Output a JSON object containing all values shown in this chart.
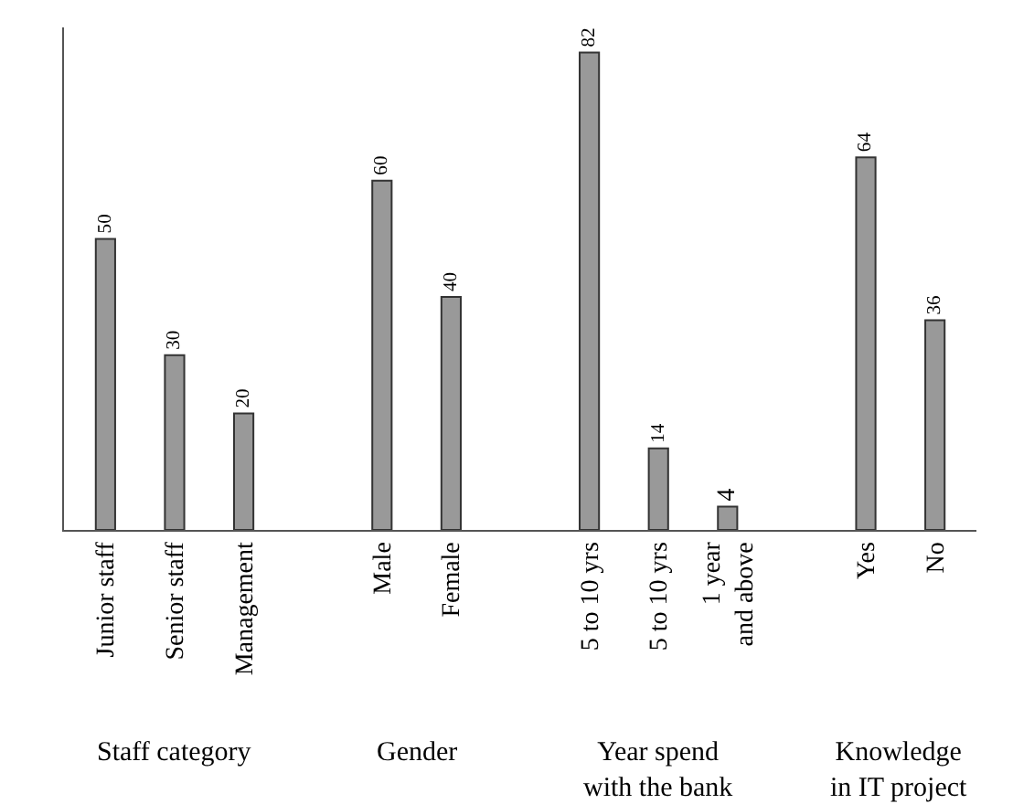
{
  "chart_data": {
    "type": "bar",
    "categories": [
      "Junior staff",
      "Senior staff",
      "Management",
      null,
      "Male",
      "Female",
      null,
      "5 to 10 yrs",
      "5 to 10 yrs",
      "1 year\nand above",
      null,
      "Yes",
      "No"
    ],
    "values": [
      50,
      30,
      20,
      null,
      60,
      40,
      null,
      82,
      14,
      4,
      null,
      64,
      36
    ],
    "color": "#999999",
    "data_labels": true,
    "tick_labels": "x",
    "annotations": [
      "Staff category",
      "Gender",
      "Year spend\nwith the bank",
      "Knowledge\nin IT project"
    ]
  }
}
